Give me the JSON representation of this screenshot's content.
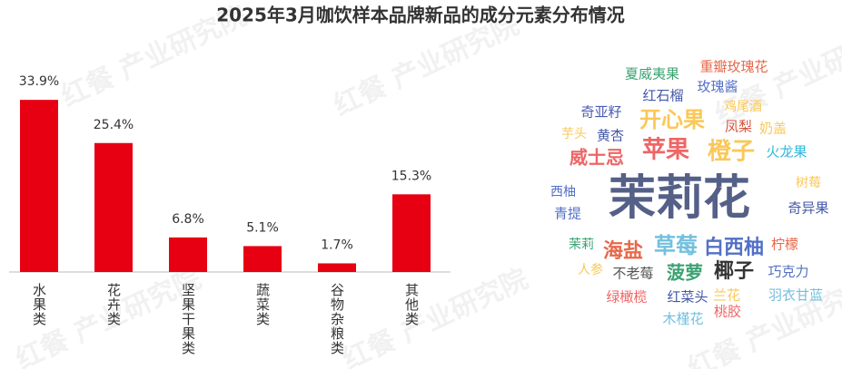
{
  "title": "2025年3月咖饮样本品牌新品的成分元素分布情况",
  "watermark": "红餐 产业研究院",
  "chart_data": [
    {
      "type": "bar",
      "categories": [
        "水果类",
        "花卉类",
        "坚果干果类",
        "蔬菜类",
        "谷物杂粮类",
        "其他类"
      ],
      "values": [
        33.9,
        25.4,
        6.8,
        5.1,
        1.7,
        15.3
      ],
      "value_labels": [
        "33.9%",
        "25.4%",
        "6.8%",
        "5.1%",
        "1.7%",
        "15.3%"
      ],
      "color": "#e60012",
      "ylim": [
        0,
        40
      ]
    },
    {
      "type": "wordcloud",
      "words": [
        {
          "text": "夏威夷果",
          "color": "#3ba272"
        },
        {
          "text": "重瓣玫瑰花",
          "color": "#e8684a"
        },
        {
          "text": "玫瑰酱",
          "color": "#5470c6"
        },
        {
          "text": "红石榴",
          "color": "#4358a8"
        },
        {
          "text": "鸡尾酒",
          "color": "#fac858"
        },
        {
          "text": "奇亚籽",
          "color": "#4b5bb5"
        },
        {
          "text": "开心果",
          "color": "#fac858"
        },
        {
          "text": "凤梨",
          "color": "#d4553e"
        },
        {
          "text": "奶盖",
          "color": "#fac858"
        },
        {
          "text": "芋头",
          "color": "#fac858"
        },
        {
          "text": "黄杏",
          "color": "#4358a8"
        },
        {
          "text": "苹果",
          "color": "#ee6666"
        },
        {
          "text": "橙子",
          "color": "#fac858"
        },
        {
          "text": "火龙果",
          "color": "#2fb8d9"
        },
        {
          "text": "威士忌",
          "color": "#ee6666"
        },
        {
          "text": "树莓",
          "color": "#fac858"
        },
        {
          "text": "西柚",
          "color": "#5470c6"
        },
        {
          "text": "茉莉花",
          "color": "#556088"
        },
        {
          "text": "奇异果",
          "color": "#4358a8"
        },
        {
          "text": "青提",
          "color": "#5470c6"
        },
        {
          "text": "茉莉",
          "color": "#3ba272"
        },
        {
          "text": "海盐",
          "color": "#e8684a"
        },
        {
          "text": "草莓",
          "color": "#73c0de"
        },
        {
          "text": "白西柚",
          "color": "#5470c6"
        },
        {
          "text": "柠檬",
          "color": "#e8684a"
        },
        {
          "text": "人参",
          "color": "#fac858"
        },
        {
          "text": "不老莓",
          "color": "#555555"
        },
        {
          "text": "菠萝",
          "color": "#3ba272"
        },
        {
          "text": "椰子",
          "color": "#333333"
        },
        {
          "text": "巧克力",
          "color": "#5470c6"
        },
        {
          "text": "绿橄榄",
          "color": "#ee6666"
        },
        {
          "text": "红菜头",
          "color": "#4358a8"
        },
        {
          "text": "兰花",
          "color": "#fac858"
        },
        {
          "text": "羽衣甘蓝",
          "color": "#73c0de"
        },
        {
          "text": "桃胶",
          "color": "#ee6666"
        },
        {
          "text": "木槿花",
          "color": "#73c0de"
        }
      ]
    }
  ]
}
